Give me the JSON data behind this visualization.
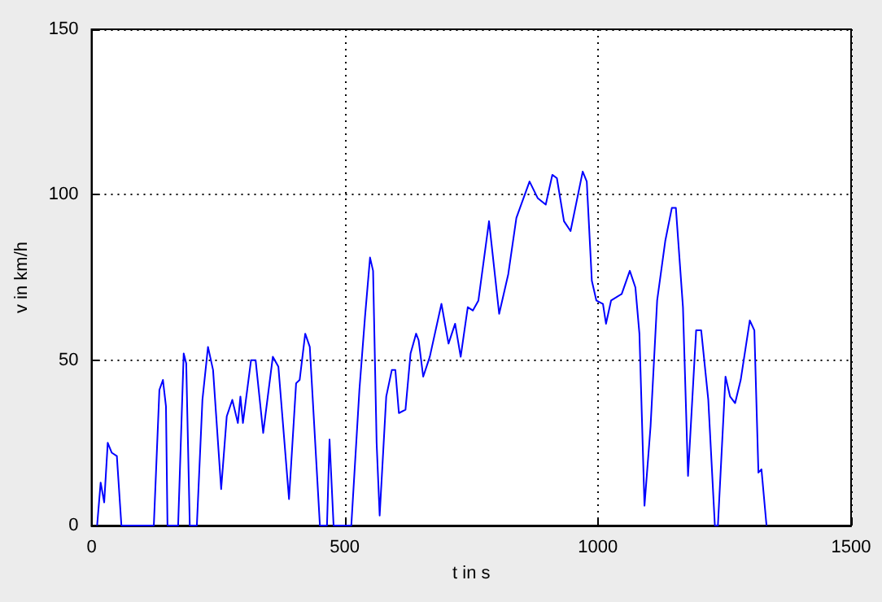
{
  "chart_data": {
    "type": "line",
    "xlabel": "t in s",
    "ylabel": "v in km/h",
    "xlim": [
      0,
      1500
    ],
    "xticks": [
      0,
      500,
      1000,
      1500
    ],
    "ylim": [
      0,
      150
    ],
    "yticks": [
      0,
      50,
      100,
      150
    ],
    "grid": true,
    "marker": "none",
    "line_style": "solid",
    "series": [
      {
        "color": "#0000ff",
        "x": [
          11,
          18,
          25,
          32,
          40,
          50,
          59,
          123,
          134,
          141,
          147,
          150,
          171,
          182,
          187,
          194,
          208,
          219,
          230,
          240,
          256,
          267,
          278,
          289,
          294,
          299,
          315,
          324,
          339,
          358,
          369,
          390,
          404,
          411,
          422,
          431,
          451,
          465,
          470,
          478,
          513,
          529,
          540,
          550,
          556,
          563,
          569,
          582,
          593,
          600,
          607,
          620,
          630,
          641,
          646,
          655,
          668,
          691,
          705,
          718,
          729,
          743,
          753,
          764,
          785,
          805,
          823,
          839,
          865,
          881,
          897,
          910,
          919,
          933,
          946,
          970,
          978,
          988,
          997,
          1010,
          1016,
          1026,
          1047,
          1063,
          1074,
          1082,
          1092,
          1104,
          1117,
          1133,
          1146,
          1154,
          1168,
          1178,
          1194,
          1204,
          1218,
          1231,
          1237,
          1252,
          1261,
          1271,
          1282,
          1300,
          1309,
          1317,
          1323,
          1333
        ],
        "values": [
          0,
          13,
          7,
          25,
          22,
          21,
          0,
          0,
          41,
          44,
          36,
          0,
          0,
          52,
          49,
          0,
          0,
          38,
          54,
          47,
          11,
          33,
          38,
          31,
          39,
          31,
          50,
          50,
          28,
          51,
          48,
          8,
          43,
          44,
          58,
          54,
          0,
          0,
          26,
          0,
          0,
          41,
          63,
          81,
          77,
          25,
          3,
          39,
          47,
          47,
          34,
          35,
          52,
          58,
          56,
          45,
          51,
          67,
          55,
          61,
          51,
          66,
          65,
          68,
          92,
          64,
          76,
          93,
          104,
          99,
          97,
          106,
          105,
          92,
          89,
          107,
          104,
          74,
          68,
          67,
          61,
          68,
          70,
          77,
          72,
          58,
          6,
          30,
          68,
          86,
          96,
          96,
          66,
          15,
          59,
          59,
          38,
          0,
          0,
          45,
          39,
          37,
          44,
          62,
          59,
          16,
          17,
          0
        ]
      }
    ]
  }
}
